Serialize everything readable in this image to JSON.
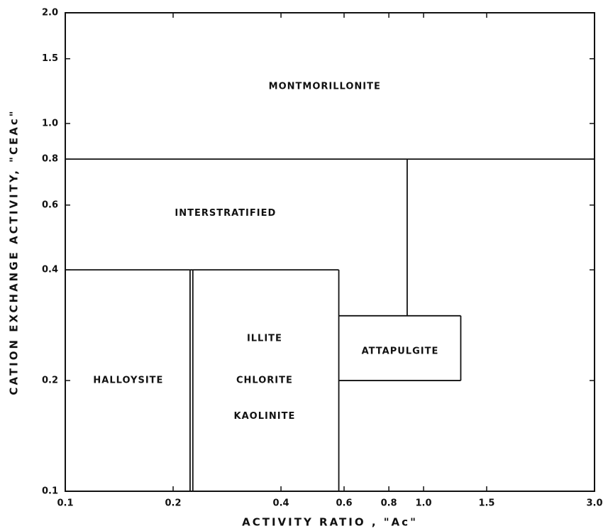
{
  "chart_data": {
    "type": "region",
    "x_label": "ACTIVITY RATIO , \"Ac\"",
    "y_label": "CATION EXCHANGE ACTIVITY, \"CEAc\"",
    "xscale": "log",
    "yscale": "log",
    "xlim": [
      0.1,
      3
    ],
    "ylim": [
      0.1,
      2
    ],
    "xticks": [
      0.1,
      0.2,
      0.4,
      0.6,
      0.8,
      {
        "value": 1,
        "label": "1.0"
      },
      1.5,
      {
        "value": 3,
        "label": "3.0"
      }
    ],
    "yticks": [
      0.1,
      0.2,
      0.4,
      0.6,
      0.8,
      {
        "value": 1,
        "label": "1.0"
      },
      1.5,
      {
        "value": 2,
        "label": "2.0"
      }
    ],
    "boundaries": [
      {
        "x": [
          0.1,
          3
        ],
        "y": [
          0.8,
          0.8
        ]
      },
      {
        "x": [
          0.9,
          0.9
        ],
        "y": [
          0.8,
          0.3
        ]
      },
      {
        "x": [
          0.1,
          0.58
        ],
        "y": [
          0.4,
          0.4
        ]
      },
      {
        "x": [
          0.223,
          0.223
        ],
        "y": [
          0.1,
          0.4
        ]
      },
      {
        "x": [
          0.227,
          0.227
        ],
        "y": [
          0.1,
          0.4
        ]
      },
      {
        "x": [
          0.58,
          0.58
        ],
        "y": [
          0.1,
          0.4
        ]
      },
      {
        "x": [
          0.58,
          1.27
        ],
        "y": [
          0.3,
          0.3
        ]
      },
      {
        "x": [
          0.58,
          1.27
        ],
        "y": [
          0.2,
          0.2
        ]
      },
      {
        "x": [
          1.27,
          1.27
        ],
        "y": [
          0.2,
          0.3
        ]
      }
    ],
    "annotations": [
      {
        "text": "MONTMORILLONITE",
        "x": 0.53,
        "y": 1.26
      },
      {
        "text": "INTERSTRATIFIED",
        "x": 0.28,
        "y": 0.57
      },
      {
        "text": "HALLOYSITE",
        "x": 0.15,
        "y": 0.2
      },
      {
        "text": "ILLITE",
        "x": 0.36,
        "y": 0.26
      },
      {
        "text": "CHLORITE",
        "x": 0.36,
        "y": 0.2
      },
      {
        "text": "KAOLINITE",
        "x": 0.36,
        "y": 0.16
      },
      {
        "text": "ATTAPULGITE",
        "x": 0.86,
        "y": 0.24
      }
    ]
  }
}
